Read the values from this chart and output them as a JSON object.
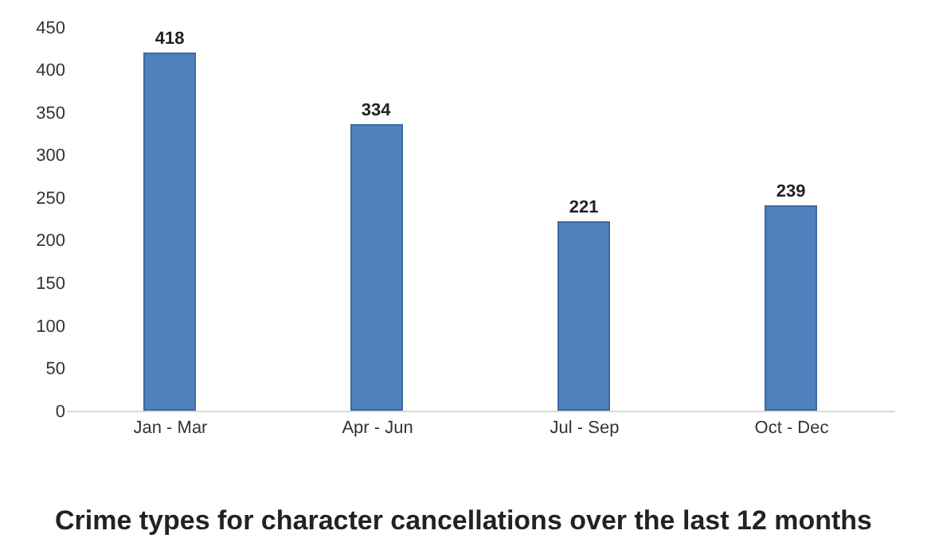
{
  "chart_data": {
    "type": "bar",
    "title": "Crime types for character cancellations over the last 12 months",
    "categories": [
      "Jan - Mar",
      "Apr - Jun",
      "Jul - Sep",
      "Oct - Dec"
    ],
    "values": [
      418,
      334,
      221,
      239
    ],
    "color": "#4f81bd",
    "ylim": [
      0,
      450
    ],
    "yticks": [
      0,
      50,
      100,
      150,
      200,
      250,
      300,
      350,
      400,
      450
    ],
    "data_labels": true
  }
}
